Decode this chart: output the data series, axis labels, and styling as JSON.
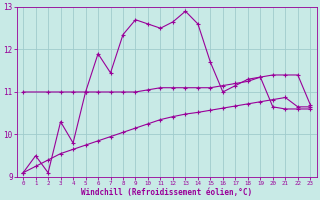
{
  "title": "",
  "xlabel": "Windchill (Refroidissement éolien,°C)",
  "bg_color": "#c8eae6",
  "grid_color": "#a0cccc",
  "line_color": "#990099",
  "xlim": [
    -0.5,
    23.5
  ],
  "ylim": [
    9,
    13
  ],
  "yticks": [
    9,
    10,
    11,
    12,
    13
  ],
  "xticks": [
    0,
    1,
    2,
    3,
    4,
    5,
    6,
    7,
    8,
    9,
    10,
    11,
    12,
    13,
    14,
    15,
    16,
    17,
    18,
    19,
    20,
    21,
    22,
    23
  ],
  "series1_x": [
    0,
    1,
    2,
    3,
    4,
    5,
    6,
    7,
    8,
    9,
    10,
    11,
    12,
    13,
    14,
    15,
    16,
    17,
    18,
    19,
    20,
    21,
    22,
    23
  ],
  "series1_y": [
    9.1,
    9.5,
    9.1,
    10.3,
    9.8,
    11.0,
    11.9,
    11.45,
    12.35,
    12.7,
    12.6,
    12.5,
    12.65,
    12.9,
    12.6,
    11.7,
    11.0,
    11.15,
    11.3,
    11.35,
    10.65,
    10.6,
    10.6,
    10.6
  ],
  "series2_x": [
    0,
    2,
    3,
    4,
    5,
    6,
    7,
    8,
    9,
    10,
    11,
    12,
    13,
    14,
    15,
    16,
    17,
    18,
    19,
    20,
    21,
    22,
    23
  ],
  "series2_y": [
    11.0,
    11.0,
    11.0,
    11.0,
    11.0,
    11.0,
    11.0,
    11.0,
    11.0,
    11.05,
    11.1,
    11.1,
    11.1,
    11.1,
    11.1,
    11.15,
    11.2,
    11.25,
    11.35,
    11.4,
    11.4,
    11.4,
    10.7
  ],
  "series3_x": [
    0,
    1,
    2,
    3,
    4,
    5,
    6,
    7,
    8,
    9,
    10,
    11,
    12,
    13,
    14,
    15,
    16,
    17,
    18,
    19,
    20,
    21,
    22,
    23
  ],
  "series3_y": [
    9.1,
    9.25,
    9.4,
    9.55,
    9.65,
    9.75,
    9.85,
    9.95,
    10.05,
    10.15,
    10.25,
    10.35,
    10.42,
    10.48,
    10.52,
    10.57,
    10.62,
    10.67,
    10.72,
    10.77,
    10.82,
    10.87,
    10.65,
    10.65
  ]
}
